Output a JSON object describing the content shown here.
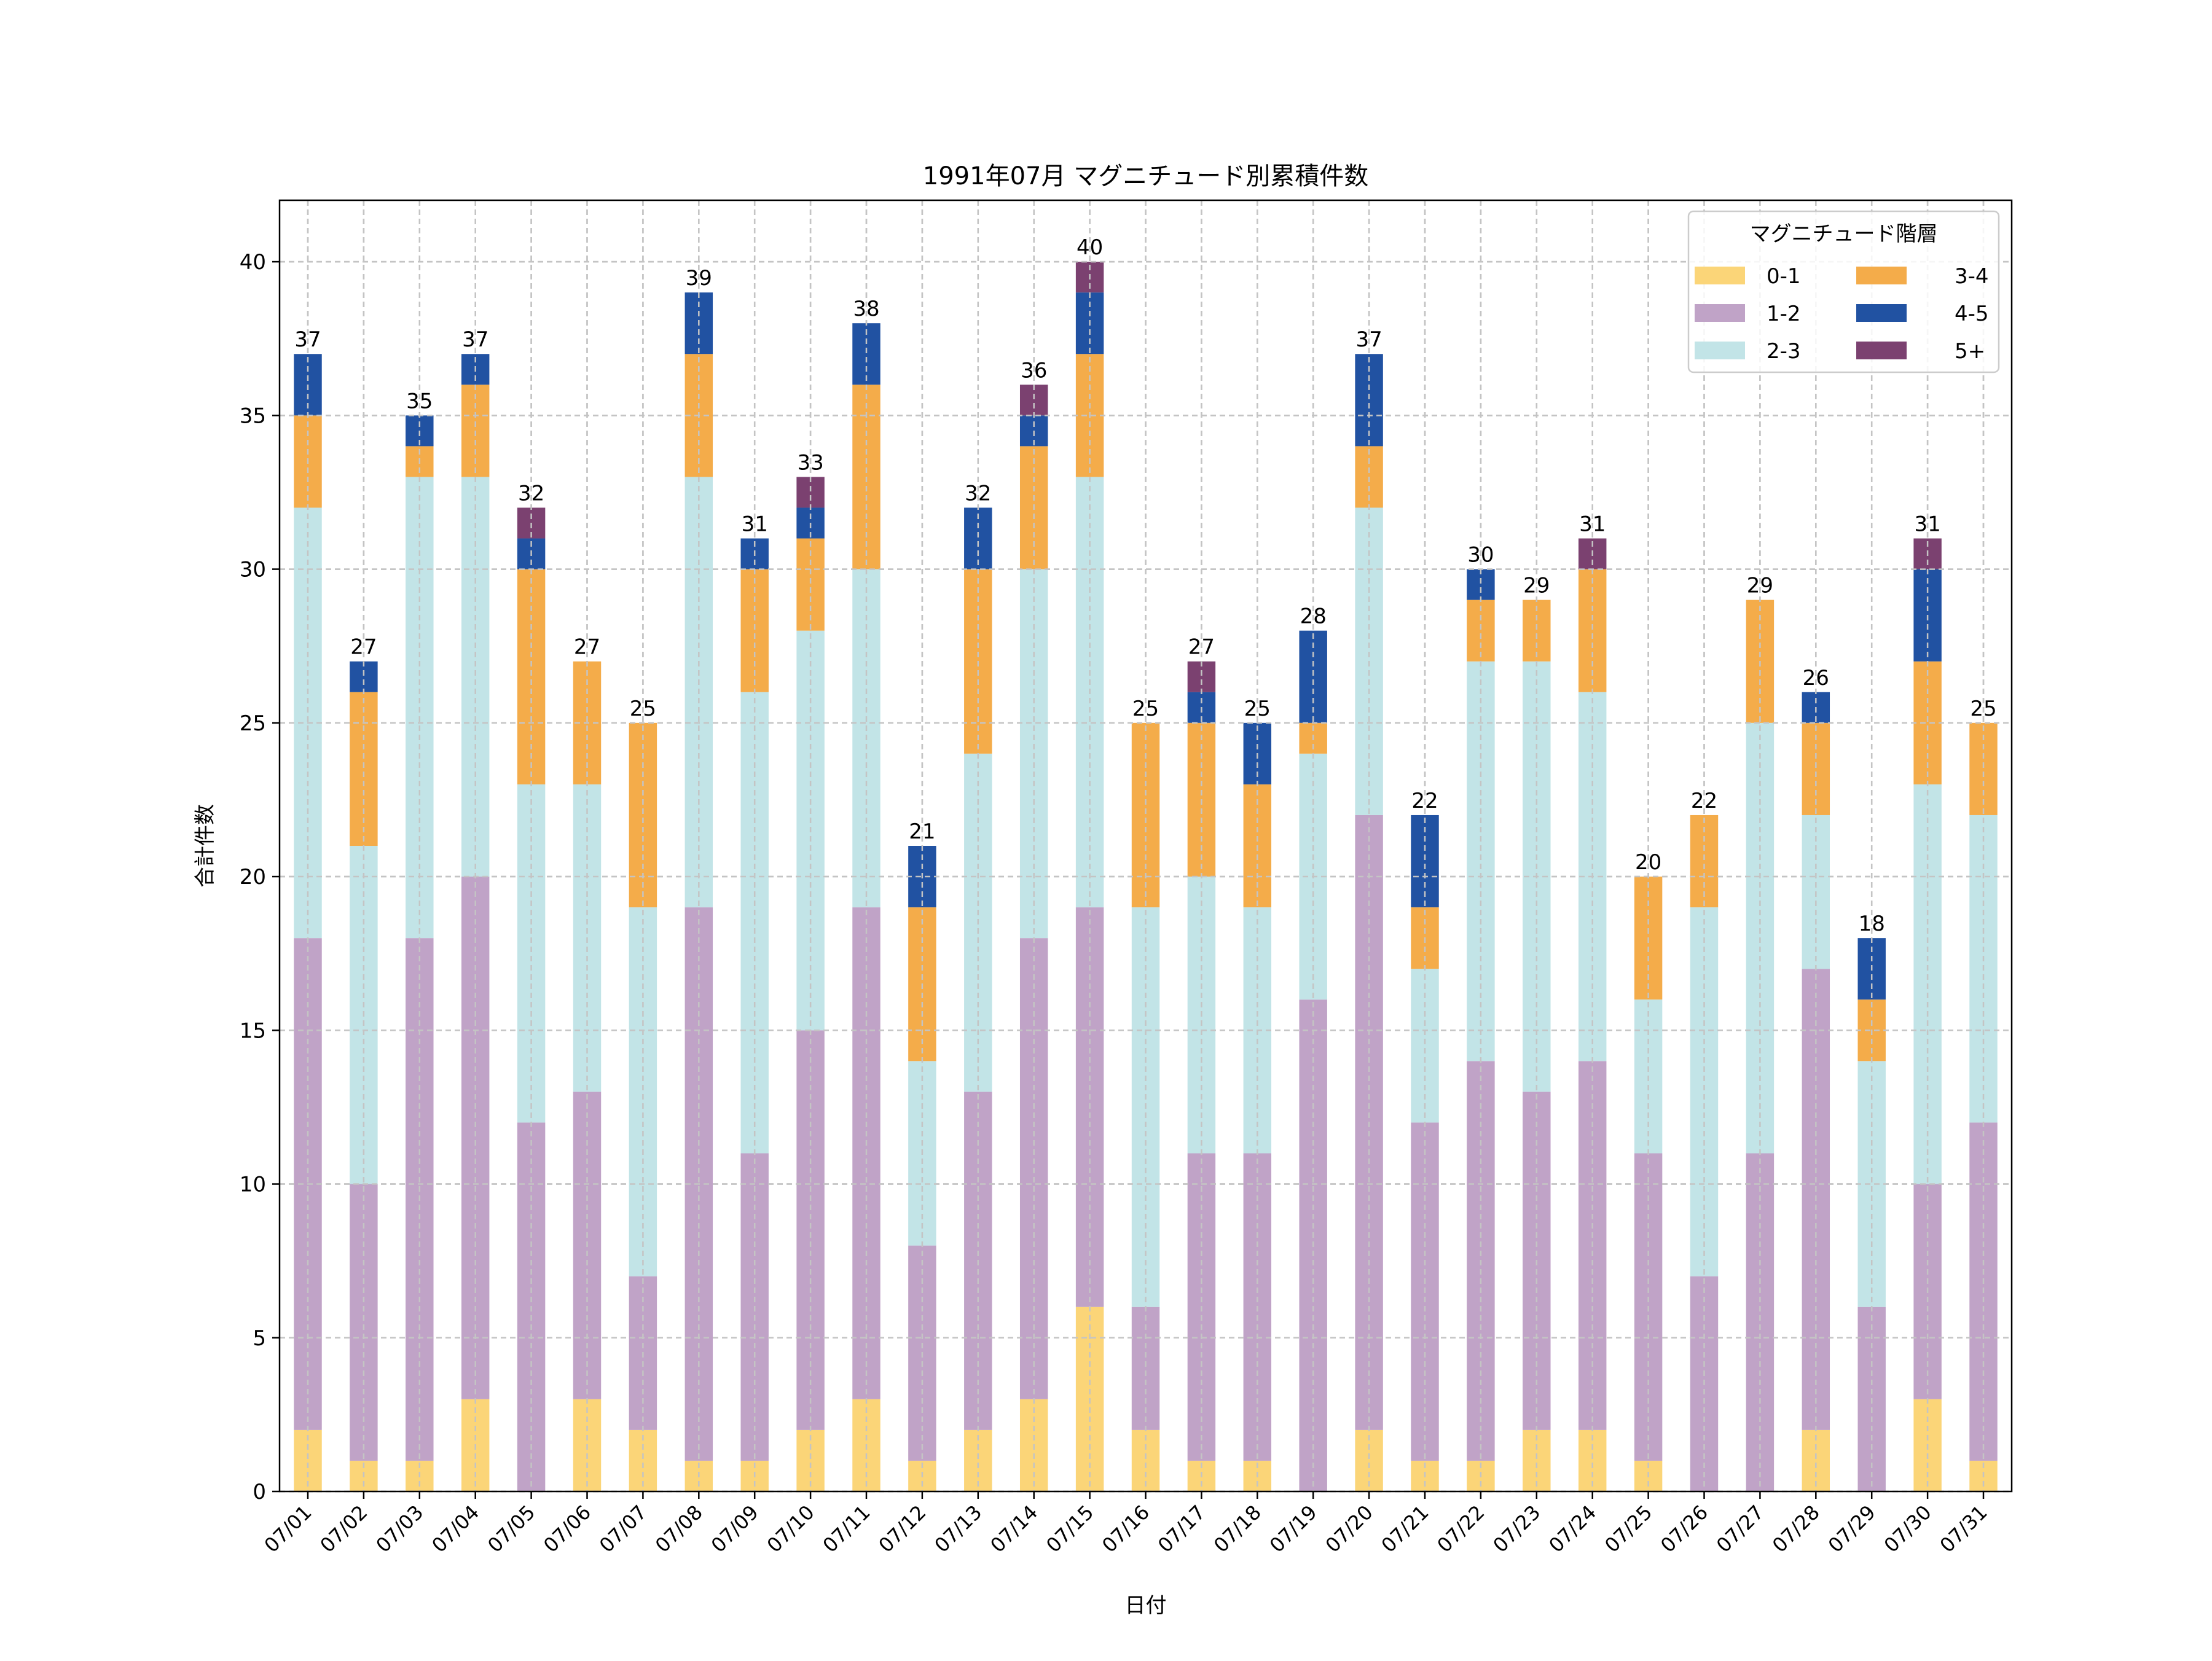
{
  "chart_data": {
    "type": "bar",
    "stacked": true,
    "title": "1991年07月 マグニチュード別累積件数",
    "xlabel": "日付",
    "ylabel": "合計件数",
    "ylim": [
      0,
      42
    ],
    "yticks": [
      0,
      5,
      10,
      15,
      20,
      25,
      30,
      35,
      40
    ],
    "grid": true,
    "legend": {
      "title": "マグニチュード階層",
      "position": "top-right",
      "columns": 2
    },
    "categories": [
      "07/01",
      "07/02",
      "07/03",
      "07/04",
      "07/05",
      "07/06",
      "07/07",
      "07/08",
      "07/09",
      "07/10",
      "07/11",
      "07/12",
      "07/13",
      "07/14",
      "07/15",
      "07/16",
      "07/17",
      "07/18",
      "07/19",
      "07/20",
      "07/21",
      "07/22",
      "07/23",
      "07/24",
      "07/25",
      "07/26",
      "07/27",
      "07/28",
      "07/29",
      "07/30",
      "07/31"
    ],
    "series": [
      {
        "name": "0-1",
        "color": "#fbd578",
        "values": [
          2,
          1,
          1,
          3,
          0,
          3,
          2,
          1,
          1,
          2,
          3,
          1,
          2,
          3,
          6,
          2,
          1,
          1,
          0,
          2,
          1,
          1,
          2,
          2,
          1,
          0,
          0,
          2,
          0,
          3,
          1
        ]
      },
      {
        "name": "1-2",
        "color": "#c0a3c7",
        "values": [
          16,
          9,
          17,
          17,
          12,
          10,
          5,
          18,
          10,
          13,
          16,
          7,
          11,
          15,
          13,
          4,
          10,
          10,
          16,
          20,
          11,
          13,
          11,
          12,
          10,
          7,
          11,
          15,
          6,
          7,
          11
        ]
      },
      {
        "name": "2-3",
        "color": "#c2e4e7",
        "values": [
          14,
          11,
          15,
          13,
          11,
          10,
          12,
          14,
          15,
          13,
          11,
          6,
          11,
          12,
          14,
          13,
          9,
          8,
          8,
          10,
          5,
          13,
          14,
          12,
          5,
          12,
          14,
          5,
          8,
          13,
          10
        ]
      },
      {
        "name": "3-4",
        "color": "#f4ac4a",
        "values": [
          3,
          5,
          1,
          3,
          7,
          4,
          6,
          4,
          4,
          3,
          6,
          5,
          6,
          4,
          4,
          6,
          5,
          4,
          1,
          2,
          2,
          2,
          2,
          4,
          4,
          3,
          4,
          3,
          2,
          4,
          3
        ]
      },
      {
        "name": "4-5",
        "color": "#2152a2",
        "values": [
          2,
          1,
          1,
          1,
          1,
          0,
          0,
          2,
          1,
          1,
          2,
          2,
          2,
          1,
          2,
          0,
          1,
          2,
          3,
          3,
          3,
          1,
          0,
          0,
          0,
          0,
          0,
          1,
          2,
          3,
          0
        ]
      },
      {
        "name": "5+",
        "color": "#7b4170",
        "values": [
          0,
          0,
          0,
          0,
          1,
          0,
          0,
          0,
          0,
          1,
          0,
          0,
          0,
          1,
          1,
          0,
          1,
          0,
          0,
          0,
          0,
          0,
          0,
          1,
          0,
          0,
          0,
          0,
          0,
          1,
          0
        ]
      }
    ],
    "totals": [
      37,
      27,
      35,
      37,
      32,
      27,
      25,
      39,
      31,
      33,
      38,
      21,
      32,
      36,
      40,
      25,
      27,
      25,
      28,
      37,
      22,
      30,
      29,
      31,
      20,
      22,
      29,
      26,
      18,
      31,
      25
    ]
  }
}
